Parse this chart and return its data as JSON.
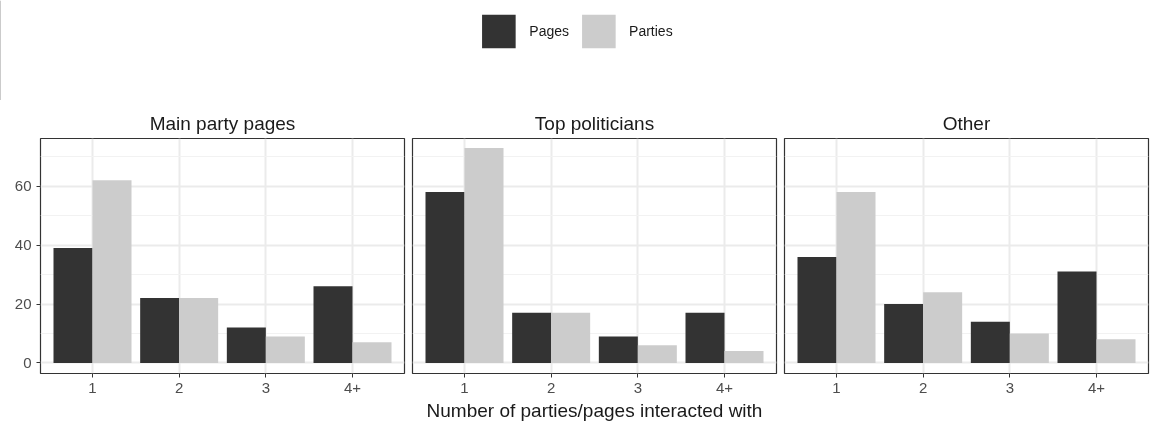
{
  "chart_data": [
    {
      "type": "bar",
      "title": "Main party pages",
      "categories": [
        "1",
        "2",
        "3",
        "4+"
      ],
      "series": [
        {
          "color": "#333333",
          "values": [
            39,
            22,
            12,
            26
          ]
        },
        {
          "color": "#cccccc",
          "values": [
            62,
            22,
            9,
            7
          ]
        }
      ],
      "ylim": [
        -3.6,
        76.2
      ],
      "yticks": [
        0,
        20,
        40,
        60
      ],
      "grid": true
    },
    {
      "type": "bar",
      "title": "Top politicians",
      "xlabel": "Number of parties/pages interacted with",
      "categories": [
        "1",
        "2",
        "3",
        "4+"
      ],
      "series": [
        {
          "name": "Pages",
          "color": "#333333",
          "values": [
            58,
            17,
            9,
            17
          ]
        },
        {
          "name": "Parties",
          "color": "#cccccc",
          "values": [
            73,
            17,
            6,
            4
          ]
        }
      ],
      "ylim": [
        -3.6,
        76.2
      ],
      "yticks": [
        0,
        20,
        40,
        60
      ],
      "grid": true,
      "tick_labels": "x",
      "legend": "top"
    },
    {
      "type": "bar",
      "title": "Other",
      "categories": [
        "1",
        "2",
        "3",
        "4+"
      ],
      "series": [
        {
          "color": "#333333",
          "values": [
            36,
            20,
            14,
            31
          ]
        },
        {
          "color": "#cccccc",
          "values": [
            58,
            24,
            10,
            8
          ]
        }
      ],
      "ylim": [
        -3.6,
        76.2
      ],
      "yticks": [
        0,
        20,
        40,
        60
      ],
      "grid": true,
      "tick_labels": "x"
    }
  ]
}
